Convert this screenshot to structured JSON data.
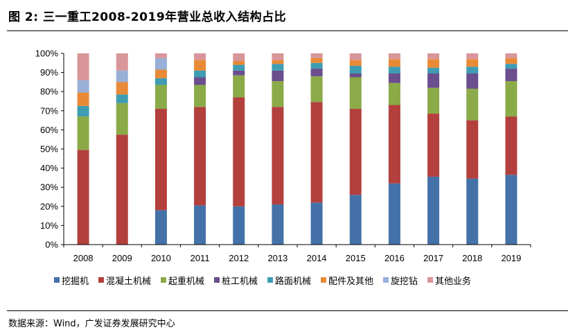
{
  "figure": {
    "title": "图 2:  三一重工2008-2019年营业总收入结构占比",
    "source": "数据来源：Wind，广发证券发展研究中心"
  },
  "chart_data": {
    "type": "bar",
    "stacked": true,
    "title": "三一重工2008-2019年营业总收入结构占比",
    "xlabel": "",
    "ylabel": "",
    "ylim": [
      0,
      100
    ],
    "y_ticks": [
      "0%",
      "10%",
      "20%",
      "30%",
      "40%",
      "50%",
      "60%",
      "70%",
      "80%",
      "90%",
      "100%"
    ],
    "categories": [
      "2008",
      "2009",
      "2010",
      "2011",
      "2012",
      "2013",
      "2014",
      "2015",
      "2016",
      "2017",
      "2018",
      "2019"
    ],
    "legend_position": "bottom",
    "series": [
      {
        "name": "挖掘机",
        "color": "#4472A8",
        "values": [
          0,
          0,
          18,
          20.5,
          20,
          21,
          22,
          26,
          32,
          35.5,
          34.5,
          36.5
        ]
      },
      {
        "name": "混凝土机械",
        "color": "#B3403D",
        "values": [
          49.5,
          57.5,
          53,
          51.5,
          57,
          51,
          52.5,
          45,
          41,
          33,
          30.5,
          30.5
        ]
      },
      {
        "name": "起重机械",
        "color": "#8BAA48",
        "values": [
          17.5,
          16.5,
          12.5,
          11.5,
          11.5,
          13.5,
          13.5,
          16.5,
          11.5,
          13.5,
          16.5,
          18.5
        ]
      },
      {
        "name": "桩工机械",
        "color": "#6A4E8D",
        "values": [
          0,
          0,
          0,
          4,
          2.5,
          5.5,
          4,
          2,
          5,
          7.5,
          8,
          6.5
        ]
      },
      {
        "name": "路面机械",
        "color": "#3E9DB2",
        "values": [
          5.5,
          4.5,
          3.5,
          3.5,
          3,
          3.5,
          3,
          4,
          3.5,
          3,
          3.5,
          2.5
        ]
      },
      {
        "name": "配件及其他",
        "color": "#E88A36",
        "values": [
          7,
          6.5,
          4.5,
          5.5,
          2,
          2,
          2.5,
          3,
          4,
          4.5,
          4,
          3
        ]
      },
      {
        "name": "旋挖钻",
        "color": "#98B0D6",
        "values": [
          6.5,
          6,
          6,
          0,
          0,
          0,
          0,
          0,
          0,
          0,
          0,
          0
        ]
      },
      {
        "name": "其他业务",
        "color": "#D9969A",
        "values": [
          14,
          9,
          2.5,
          3.5,
          4,
          3.5,
          2.5,
          3.5,
          3,
          3,
          3,
          2.5
        ]
      }
    ]
  }
}
